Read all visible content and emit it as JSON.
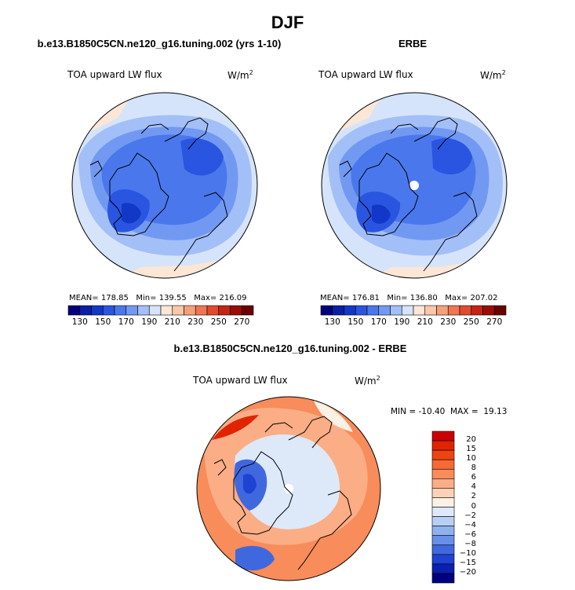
{
  "figure": {
    "title": "DJF"
  },
  "chart_data": [
    {
      "type": "heatmap",
      "projection": "north-polar-stereographic",
      "title": "b.e13.B1850C5CN.ne120_g16.tuning.002 (yrs 1-10)",
      "variable": "TOA upward LW flux",
      "units": "W/m",
      "units_exp": "2",
      "stats": {
        "mean_label": "MEAN=",
        "mean": "178.85",
        "min_label": "Min=",
        "min": "139.55",
        "max_label": "Max=",
        "max": "216.09"
      },
      "colorbar_levels": [
        130,
        140,
        150,
        160,
        170,
        180,
        190,
        200,
        210,
        220,
        230,
        240,
        250,
        260,
        270
      ],
      "colorbar_labels": [
        "130",
        "150",
        "170",
        "190",
        "210",
        "230",
        "250",
        "270"
      ],
      "colors": [
        "#00007f",
        "#0a1fa6",
        "#1238c8",
        "#2a55e0",
        "#4a78ec",
        "#7299f2",
        "#a3bff7",
        "#d5e4fa",
        "#fde6d6",
        "#fbc7a8",
        "#f6a07a",
        "#ef7650",
        "#e24a2c",
        "#c42412",
        "#9a0d05",
        "#6b0000"
      ]
    },
    {
      "type": "heatmap",
      "projection": "north-polar-stereographic",
      "title": "ERBE",
      "variable": "TOA upward LW flux",
      "units": "W/m",
      "units_exp": "2",
      "stats": {
        "mean_label": "MEAN=",
        "mean": "176.81",
        "min_label": "Min=",
        "min": "136.80",
        "max_label": "Max=",
        "max": "207.02"
      },
      "colorbar_levels": [
        130,
        140,
        150,
        160,
        170,
        180,
        190,
        200,
        210,
        220,
        230,
        240,
        250,
        260,
        270
      ],
      "colorbar_labels": [
        "130",
        "150",
        "170",
        "190",
        "210",
        "230",
        "250",
        "270"
      ],
      "colors": [
        "#00007f",
        "#0a1fa6",
        "#1238c8",
        "#2a55e0",
        "#4a78ec",
        "#7299f2",
        "#a3bff7",
        "#d5e4fa",
        "#fde6d6",
        "#fbc7a8",
        "#f6a07a",
        "#ef7650",
        "#e24a2c",
        "#c42412",
        "#9a0d05",
        "#6b0000"
      ]
    },
    {
      "type": "heatmap",
      "projection": "north-polar-stereographic",
      "title": "b.e13.B1850C5CN.ne120_g16.tuning.002 - ERBE",
      "variable": "TOA upward LW flux",
      "units": "W/m",
      "units_exp": "2",
      "stats": {
        "min_label": "MIN =",
        "min": "-10.40",
        "max_label": "MAX =",
        "max": "19.13"
      },
      "colorbar_levels": [
        -20,
        -15,
        -10,
        -8,
        -6,
        -4,
        -2,
        0,
        2,
        4,
        6,
        8,
        10,
        15,
        20
      ],
      "colorbar_labels": [
        "20",
        "15",
        "10",
        "8",
        "6",
        "4",
        "2",
        "0",
        "−2",
        "−4",
        "−6",
        "−8",
        "−10",
        "−15",
        "−20"
      ],
      "colors": [
        "#cc0000",
        "#e02400",
        "#ee4410",
        "#f56a35",
        "#f88c5a",
        "#fbad85",
        "#fcd2b6",
        "#fdf0e4",
        "#dde9f9",
        "#b8cff5",
        "#8fb2ef",
        "#6890e8",
        "#4068de",
        "#1e42d2",
        "#0b1fb0",
        "#000080"
      ]
    }
  ]
}
